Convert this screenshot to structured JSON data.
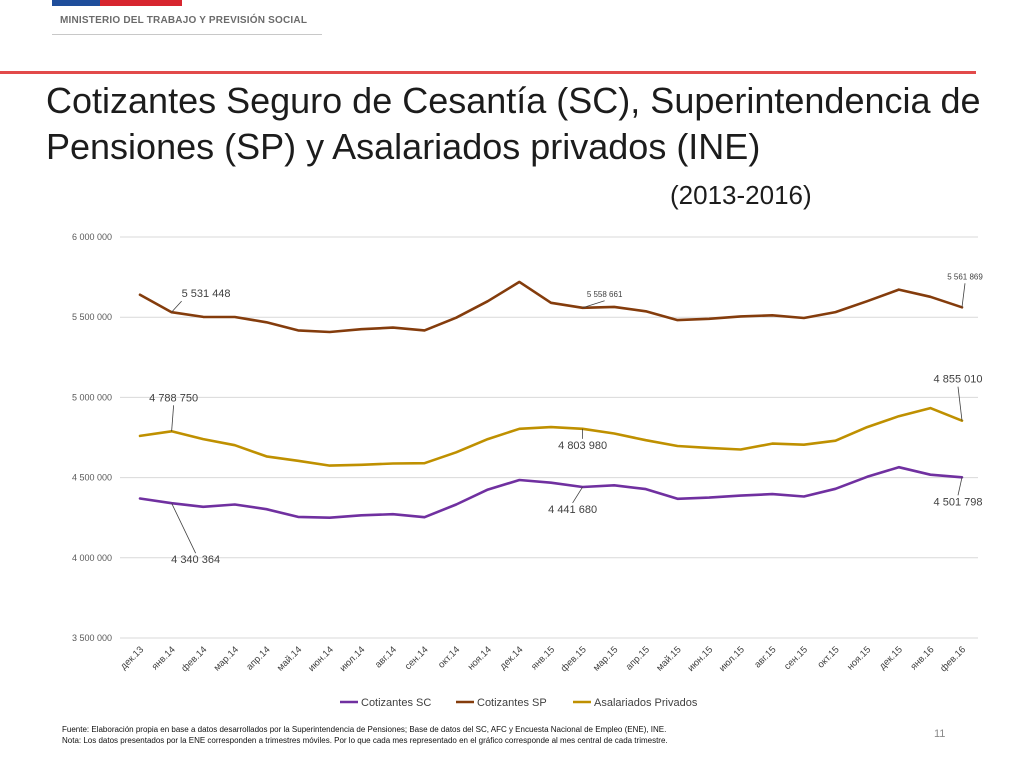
{
  "header": {
    "ministry": "MINISTERIO DEL TRABAJO Y PREVISIÓN SOCIAL",
    "brand_colors": {
      "blue": "#1f4e9b",
      "red": "#d7262f",
      "accent_line": "#e24a4a"
    }
  },
  "slide": {
    "title": "Cotizantes Seguro de Cesantía (SC), Superintendencia de Pensiones (SP) y Asalariados privados (INE)",
    "subtitle": "(2013-2016)",
    "page_number": "11"
  },
  "footnote": {
    "line1": "Fuente: Elaboración propia en base a datos desarrollados por la Superintendencia de Pensiones; Base de datos del SC, AFC y Encuesta Nacional de Empleo (ENE), INE.",
    "line2": "Nota: Los datos presentados por la ENE corresponden a trimestres móviles. Por lo que cada mes representado en el gráfico corresponde al mes central de cada trimestre."
  },
  "chart_data": {
    "type": "line",
    "categories": [
      "дек.13",
      "янв.14",
      "фев.14",
      "мар.14",
      "апр.14",
      "май.14",
      "июн.14",
      "июл.14",
      "авг.14",
      "сен.14",
      "окт.14",
      "ноя.14",
      "дек.14",
      "янв.15",
      "фев.15",
      "мар.15",
      "апр.15",
      "май.15",
      "июн.15",
      "июл.15",
      "авг.15",
      "сен.15",
      "окт.15",
      "ноя.15",
      "дек.15",
      "янв.16",
      "фев.16"
    ],
    "ylim": [
      3500000,
      6000000
    ],
    "yticks": [
      3500000,
      4000000,
      4500000,
      5000000,
      5500000,
      6000000
    ],
    "ytick_labels": [
      "3 500 000",
      "4 000 000",
      "4 500 000",
      "5 000 000",
      "5 500 000",
      "6 000 000"
    ],
    "grid": true,
    "legend_position": "bottom",
    "series": [
      {
        "name": "Cotizantes SC",
        "color": "#7030a0",
        "values": [
          4370000,
          4340364,
          4318000,
          4332000,
          4303000,
          4255000,
          4250000,
          4265000,
          4272000,
          4253000,
          4332000,
          4425000,
          4485000,
          4468000,
          4441680,
          4452000,
          4428000,
          4368000,
          4375000,
          4388000,
          4397000,
          4382000,
          4430000,
          4505000,
          4565000,
          4518000,
          4501798
        ]
      },
      {
        "name": "Cotizantes SP",
        "color": "#843c0c",
        "values": [
          5640000,
          5531448,
          5502000,
          5501000,
          5468000,
          5418000,
          5408000,
          5425000,
          5435000,
          5418000,
          5497000,
          5600000,
          5720000,
          5590000,
          5558661,
          5564000,
          5537000,
          5482000,
          5490000,
          5505000,
          5512000,
          5495000,
          5532000,
          5600000,
          5672000,
          5627000,
          5561869
        ]
      },
      {
        "name": "Asalariados Privados",
        "color": "#bf9000",
        "values": [
          4760000,
          4788750,
          4740000,
          4702000,
          4632000,
          4605000,
          4575000,
          4580000,
          4588000,
          4590000,
          4658000,
          4740000,
          4803980,
          4815000,
          4803980,
          4775000,
          4733000,
          4697000,
          4685000,
          4675000,
          4712000,
          4705000,
          4730000,
          4815000,
          4883000,
          4933000,
          4855010
        ]
      }
    ],
    "annotations": [
      {
        "series": 1,
        "index": 1,
        "text": "5 531 448",
        "small": false
      },
      {
        "series": 1,
        "index": 14,
        "text": "5 558 661",
        "small": true
      },
      {
        "series": 1,
        "index": 26,
        "text": "5 561 869",
        "small": true
      },
      {
        "series": 2,
        "index": 1,
        "text": "4 788 750",
        "small": false
      },
      {
        "series": 2,
        "index": 14,
        "text": "4 803 980",
        "small": false
      },
      {
        "series": 2,
        "index": 26,
        "text": "4 855 010",
        "small": false
      },
      {
        "series": 0,
        "index": 1,
        "text": "4 340 364",
        "small": false
      },
      {
        "series": 0,
        "index": 14,
        "text": "4 441 680",
        "small": false
      },
      {
        "series": 0,
        "index": 26,
        "text": "4 501 798",
        "small": false
      }
    ]
  }
}
